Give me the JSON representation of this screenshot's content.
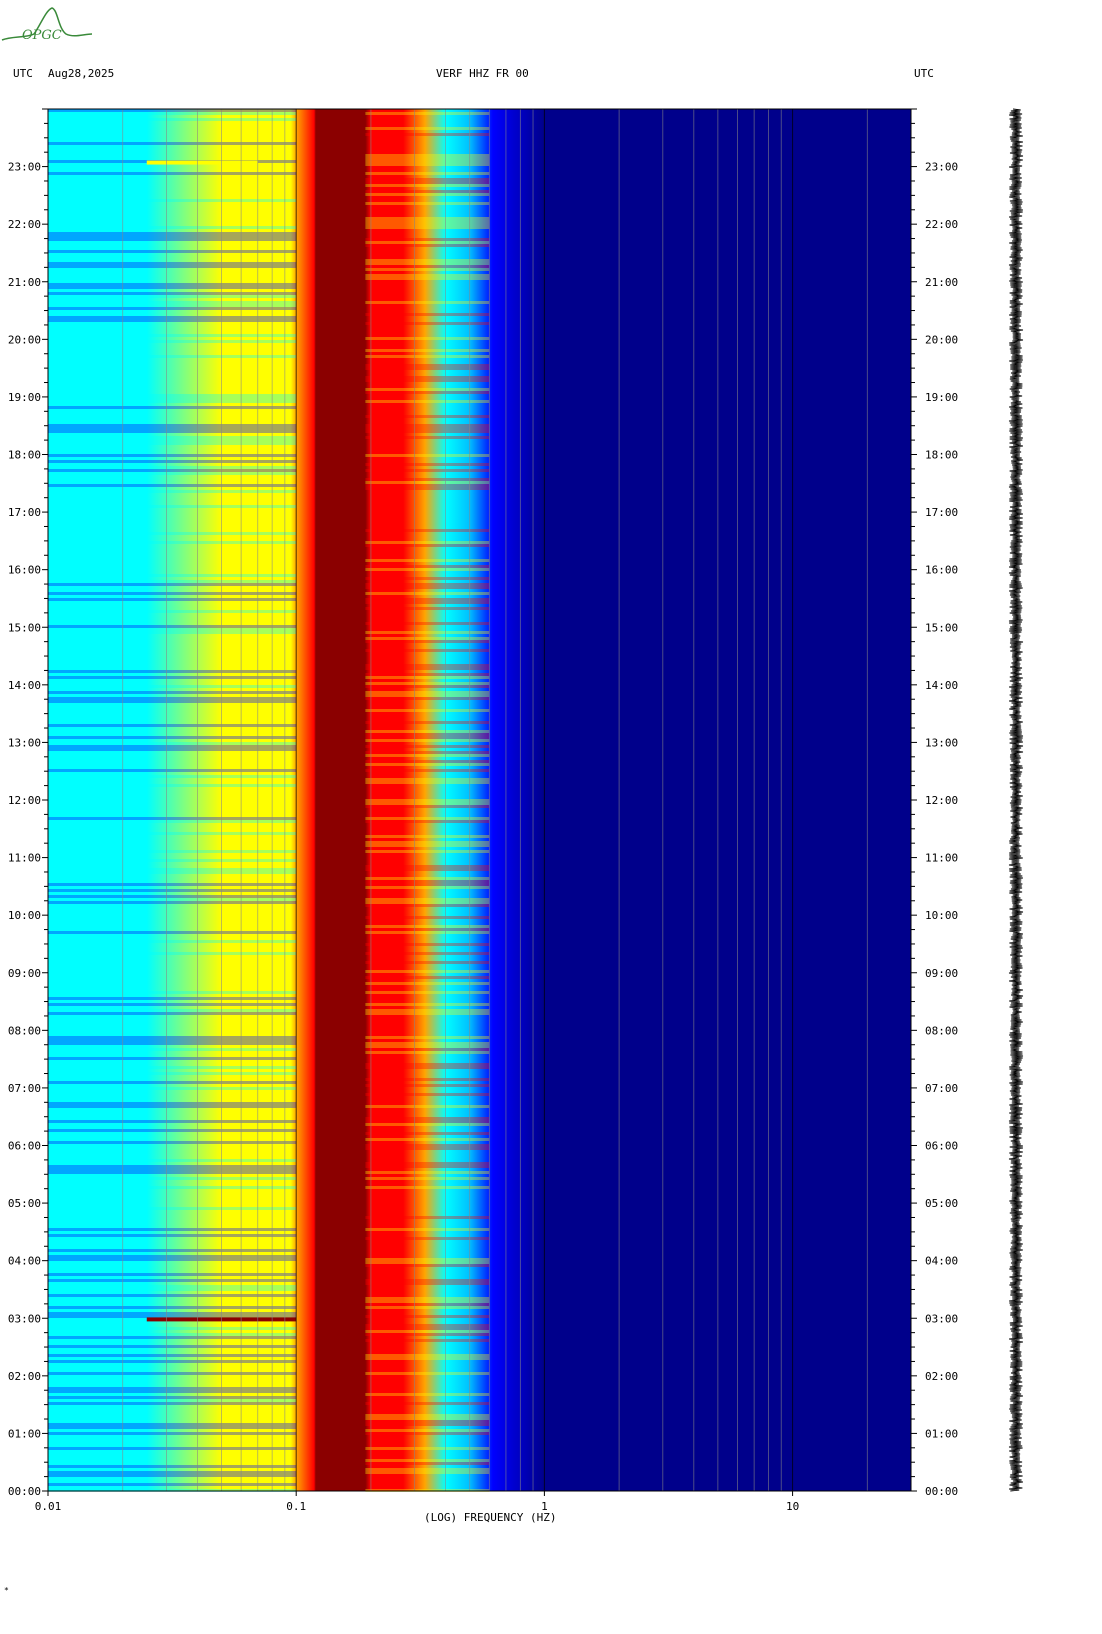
{
  "header": {
    "left_utc": "UTC",
    "date": "Aug28,2025",
    "station": "VERF HHZ FR 00",
    "right_utc": "UTC"
  },
  "logo": {
    "text": "OPGC",
    "color": "#3a8a3a"
  },
  "footer": {
    "mark": "*"
  },
  "chart_data": {
    "type": "heatmap",
    "title": "VERF HHZ FR 00",
    "xlabel": "(LOG) FREQUENCY (HZ)",
    "ylabel": "UTC",
    "x_scale": "log",
    "xlim": [
      0.01,
      30
    ],
    "x_ticks": [
      {
        "value": 0.01,
        "label": "0.01"
      },
      {
        "value": 0.1,
        "label": "0.1"
      },
      {
        "value": 1,
        "label": "1"
      },
      {
        "value": 10,
        "label": "10"
      }
    ],
    "y_ticks": [
      "00:00",
      "01:00",
      "02:00",
      "03:00",
      "04:00",
      "05:00",
      "06:00",
      "07:00",
      "08:00",
      "09:00",
      "10:00",
      "11:00",
      "12:00",
      "13:00",
      "14:00",
      "15:00",
      "16:00",
      "17:00",
      "18:00",
      "19:00",
      "20:00",
      "21:00",
      "22:00",
      "23:00"
    ],
    "ylim_hours": [
      0,
      24
    ],
    "colormap": [
      "#00008b",
      "#0000ff",
      "#00bfff",
      "#00ffff",
      "#ffff00",
      "#ffa500",
      "#ff0000",
      "#8b0000"
    ],
    "profile": [
      {
        "freq": 0.01,
        "level": 0.38
      },
      {
        "freq": 0.024,
        "level": 0.4
      },
      {
        "freq": 0.025,
        "level": 0.46
      },
      {
        "freq": 0.05,
        "level": 0.5
      },
      {
        "freq": 0.07,
        "level": 0.54
      },
      {
        "freq": 0.095,
        "level": 0.6
      },
      {
        "freq": 0.1,
        "level": 0.74
      },
      {
        "freq": 0.118,
        "level": 0.8
      },
      {
        "freq": 0.12,
        "level": 1.0
      },
      {
        "freq": 0.19,
        "level": 1.0
      },
      {
        "freq": 0.2,
        "level": 0.9
      },
      {
        "freq": 0.27,
        "level": 0.85
      },
      {
        "freq": 0.33,
        "level": 0.7
      },
      {
        "freq": 0.4,
        "level": 0.45
      },
      {
        "freq": 0.5,
        "level": 0.25
      },
      {
        "freq": 0.62,
        "level": 0.14
      },
      {
        "freq": 1.0,
        "level": 0.06
      },
      {
        "freq": 30,
        "level": 0.02
      }
    ],
    "events": [
      {
        "hour": 2.98,
        "freq_min": 0.025,
        "freq_max": 0.1,
        "level": 0.95
      },
      {
        "hour": 23.07,
        "freq_min": 0.025,
        "freq_max": 0.07,
        "level": 0.6
      }
    ]
  }
}
